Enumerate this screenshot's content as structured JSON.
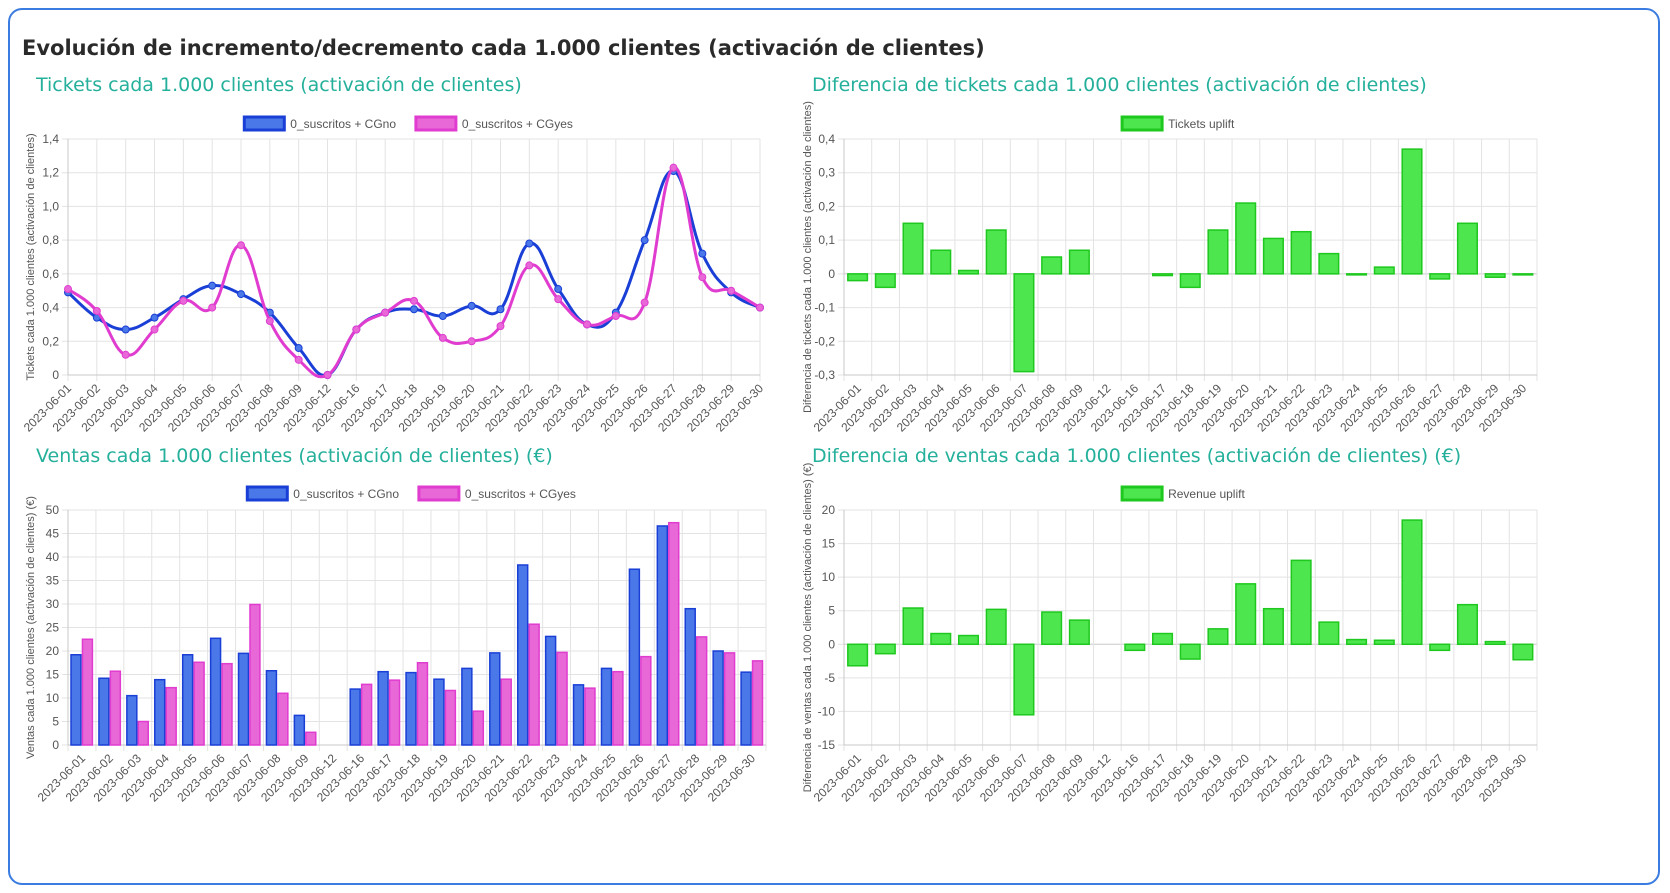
{
  "page": {
    "title": "Evolución de incremento/decremento cada 1.000 clientes (activación de clientes)"
  },
  "dates": [
    "2023-06-01",
    "2023-06-02",
    "2023-06-03",
    "2023-06-04",
    "2023-06-05",
    "2023-06-06",
    "2023-06-07",
    "2023-06-08",
    "2023-06-09",
    "2023-06-12",
    "2023-06-16",
    "2023-06-17",
    "2023-06-18",
    "2023-06-19",
    "2023-06-20",
    "2023-06-21",
    "2023-06-22",
    "2023-06-23",
    "2023-06-24",
    "2023-06-25",
    "2023-06-26",
    "2023-06-27",
    "2023-06-28",
    "2023-06-29",
    "2023-06-30"
  ],
  "colors": {
    "blue_line": "#1a3fd6",
    "blue_fill": "#4a78e8",
    "pink_line": "#e03ccf",
    "pink_fill": "#e868d8",
    "green_fill": "#4ee64e",
    "green_line": "#1ec81e",
    "title_accent": "#24b09b",
    "frame": "#3a7ce0"
  },
  "chart_data": [
    {
      "id": "tickets",
      "type": "line",
      "title": "Tickets cada 1.000 clientes (activación de clientes)",
      "ylabel": "Tickets cada 1.000 clientes (activación de clientes)",
      "ylim": [
        0,
        1.4
      ],
      "yticks": [
        0,
        0.2,
        0.4,
        0.6,
        0.8,
        1.0,
        1.2,
        1.4
      ],
      "ytick_labels": [
        "0",
        "0,2",
        "0,4",
        "0,6",
        "0,8",
        "1,0",
        "1,2",
        "1,4"
      ],
      "grid": true,
      "legend_position": "top",
      "series": [
        {
          "name": "0_suscritos + CGno",
          "color": "blue",
          "values": [
            0.49,
            0.34,
            0.27,
            0.34,
            0.45,
            0.53,
            0.48,
            0.37,
            0.16,
            0.0,
            0.27,
            0.37,
            0.39,
            0.35,
            0.41,
            0.39,
            0.78,
            0.51,
            0.3,
            0.37,
            0.8,
            1.21,
            0.72,
            0.49,
            0.4
          ]
        },
        {
          "name": "0_suscritos + CGyes",
          "color": "pink",
          "values": [
            0.51,
            0.38,
            0.12,
            0.27,
            0.44,
            0.4,
            0.77,
            0.32,
            0.09,
            0.0,
            0.27,
            0.37,
            0.44,
            0.22,
            0.2,
            0.29,
            0.65,
            0.45,
            0.3,
            0.35,
            0.43,
            1.23,
            0.58,
            0.5,
            0.4
          ]
        }
      ]
    },
    {
      "id": "tickets_diff",
      "type": "bar",
      "title": "Diferencia de tickets cada 1.000 clientes (activación de clientes)",
      "ylabel": "Diferencia de tickets cada 1.000 clientes (activación de clientes)",
      "ylim": [
        -0.3,
        0.4
      ],
      "yticks": [
        -0.3,
        -0.2,
        -0.1,
        0,
        0.1,
        0.2,
        0.3,
        0.4
      ],
      "ytick_labels": [
        "-0,3",
        "-0,2",
        "-0,1",
        "0",
        "0,1",
        "0,2",
        "0,3",
        "0,4"
      ],
      "grid": true,
      "legend_position": "top",
      "series": [
        {
          "name": "Tickets uplift",
          "color": "green",
          "values": [
            -0.02,
            -0.04,
            0.15,
            0.07,
            0.01,
            0.13,
            -0.29,
            0.05,
            0.07,
            0.0,
            0.0,
            -0.005,
            -0.04,
            0.13,
            0.21,
            0.105,
            0.125,
            0.06,
            -0.003,
            0.02,
            0.37,
            -0.015,
            0.15,
            -0.01,
            -0.003
          ]
        }
      ]
    },
    {
      "id": "ventas",
      "type": "bar",
      "title": "Ventas cada 1.000 clientes (activación de clientes) (€)",
      "ylabel": "Ventas cada 1.000 clientes (activación de clientes) (€)",
      "ylim": [
        0,
        50
      ],
      "yticks": [
        0,
        5,
        10,
        15,
        20,
        25,
        30,
        35,
        40,
        45,
        50
      ],
      "ytick_labels": [
        "0",
        "5",
        "10",
        "15",
        "20",
        "25",
        "30",
        "35",
        "40",
        "45",
        "50"
      ],
      "grid": true,
      "legend_position": "top",
      "series": [
        {
          "name": "0_suscritos + CGno",
          "color": "blue",
          "values": [
            19.2,
            14.2,
            10.5,
            13.9,
            19.2,
            22.7,
            19.5,
            15.8,
            6.3,
            0,
            11.9,
            15.6,
            15.4,
            14.0,
            16.3,
            19.6,
            38.3,
            23.1,
            12.8,
            16.3,
            37.4,
            46.6,
            29.0,
            20.0,
            15.5
          ]
        },
        {
          "name": "0_suscritos + CGyes",
          "color": "pink",
          "values": [
            22.5,
            15.7,
            5.0,
            12.2,
            17.6,
            17.3,
            29.9,
            11.0,
            2.7,
            0,
            12.9,
            13.8,
            17.5,
            11.6,
            7.2,
            14.0,
            25.7,
            19.7,
            12.1,
            15.6,
            18.8,
            47.3,
            23.0,
            19.6,
            17.9
          ]
        }
      ]
    },
    {
      "id": "ventas_diff",
      "type": "bar",
      "title": "Diferencia de ventas cada 1.000 clientes (activación de clientes) (€)",
      "ylabel": "Diferencia de ventas cada 1.000 clientes (activación de clientes) (€)",
      "ylim": [
        -15,
        20
      ],
      "yticks": [
        -15,
        -10,
        -5,
        0,
        5,
        10,
        15,
        20
      ],
      "ytick_labels": [
        "-15",
        "-10",
        "-5",
        "0",
        "5",
        "10",
        "15",
        "20"
      ],
      "grid": true,
      "legend_position": "top",
      "series": [
        {
          "name": "Revenue uplift",
          "color": "green",
          "values": [
            -3.2,
            -1.4,
            5.4,
            1.6,
            1.3,
            5.2,
            -10.5,
            4.8,
            3.6,
            0,
            -0.9,
            1.6,
            -2.2,
            2.3,
            9.0,
            5.3,
            12.5,
            3.3,
            0.7,
            0.6,
            18.5,
            -0.9,
            5.9,
            0.4,
            -2.3
          ]
        }
      ]
    }
  ]
}
